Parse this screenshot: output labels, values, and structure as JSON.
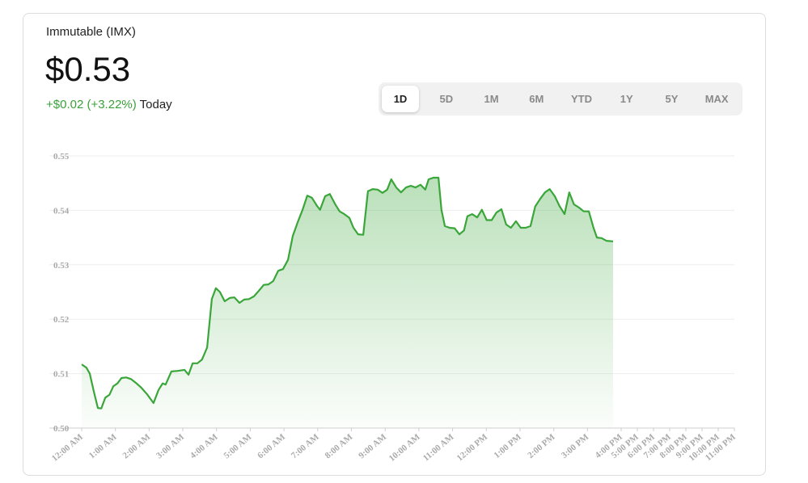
{
  "header": {
    "name": "Immutable (IMX)",
    "price": "$0.53",
    "change": "+$0.02 (+3.22%)",
    "period": "Today"
  },
  "range_buttons": [
    "1D",
    "5D",
    "1M",
    "6M",
    "YTD",
    "1Y",
    "5Y",
    "MAX"
  ],
  "selected_range": 0,
  "chart_data": {
    "type": "line",
    "color": "#3aa63a",
    "grid": true,
    "xlim": [
      0,
      23
    ],
    "ylim": [
      0.5,
      0.55
    ],
    "yticks": [
      {
        "value": 0.5,
        "label": "0.50"
      },
      0.51,
      0.52,
      0.53,
      0.54,
      0.55
    ],
    "xticks": [
      {
        "value": 0,
        "label": "12:00 AM"
      },
      {
        "value": 1,
        "label": "1:00 AM"
      },
      {
        "value": 2,
        "label": "2:00 AM"
      },
      {
        "value": 3,
        "label": "3:00 AM"
      },
      {
        "value": 4,
        "label": "4:00 AM"
      },
      {
        "value": 5,
        "label": "5:00 AM"
      },
      {
        "value": 6,
        "label": "6:00 AM"
      },
      {
        "value": 7,
        "label": "7:00 AM"
      },
      {
        "value": 8,
        "label": "8:00 AM"
      },
      {
        "value": 9,
        "label": "9:00 AM"
      },
      {
        "value": 10,
        "label": "10:00 AM"
      },
      {
        "value": 11,
        "label": "11:00 AM"
      },
      {
        "value": 12,
        "label": "12:00 PM"
      },
      {
        "value": 13,
        "label": "1:00 PM"
      },
      {
        "value": 14,
        "label": "2:00 PM"
      },
      {
        "value": 15,
        "label": "3:00 PM"
      },
      {
        "value": 16,
        "label": "4:00 PM"
      },
      {
        "value": 17,
        "label": "5:00 PM"
      },
      {
        "value": 18,
        "label": "6:00 PM"
      },
      {
        "value": 19,
        "label": "7:00 PM"
      },
      {
        "value": 20,
        "label": "8:00 PM"
      },
      {
        "value": 21,
        "label": "9:00 PM"
      },
      {
        "value": 22,
        "label": "10:00 PM"
      },
      {
        "value": 23,
        "label": "11:00 PM"
      }
    ],
    "x": [
      0,
      0.14,
      0.24,
      0.36,
      0.48,
      0.58,
      0.7,
      0.82,
      0.94,
      1.06,
      1.18,
      1.32,
      1.46,
      1.61,
      1.77,
      1.94,
      2.13,
      2.28,
      2.4,
      2.49,
      2.66,
      2.85,
      3.05,
      3.17,
      3.29,
      3.43,
      3.57,
      3.72,
      3.86,
      3.98,
      4.1,
      4.24,
      4.39,
      4.53,
      4.68,
      4.82,
      4.96,
      5.11,
      5.25,
      5.4,
      5.54,
      5.68,
      5.83,
      5.97,
      6.12,
      6.26,
      6.4,
      6.55,
      6.69,
      6.83,
      6.98,
      7.07,
      7.22,
      7.36,
      7.51,
      7.65,
      7.79,
      7.94,
      8.06,
      8.2,
      8.35,
      8.49,
      8.63,
      8.78,
      8.92,
      9.06,
      9.18,
      9.33,
      9.47,
      9.62,
      9.76,
      9.9,
      10.05,
      10.19,
      10.29,
      10.43,
      10.58,
      10.67,
      10.77,
      10.91,
      11.06,
      11.2,
      11.34,
      11.44,
      11.58,
      11.73,
      11.87,
      12.01,
      12.16,
      12.3,
      12.45,
      12.59,
      12.73,
      12.88,
      13.02,
      13.17,
      13.31,
      13.45,
      13.6,
      13.74,
      13.88,
      14.03,
      14.17,
      14.32,
      14.46,
      14.6,
      14.75,
      14.89,
      15.04,
      15.18,
      15.28,
      15.42,
      15.56,
      15.76
    ],
    "values": [
      0.5117,
      0.5111,
      0.51,
      0.5067,
      0.5037,
      0.5036,
      0.5056,
      0.5061,
      0.5077,
      0.5082,
      0.5092,
      0.5093,
      0.509,
      0.5083,
      0.5074,
      0.5062,
      0.5046,
      0.507,
      0.5082,
      0.508,
      0.5104,
      0.5105,
      0.5107,
      0.5098,
      0.5119,
      0.5119,
      0.5126,
      0.5148,
      0.5237,
      0.5257,
      0.525,
      0.5233,
      0.5239,
      0.524,
      0.523,
      0.5236,
      0.5237,
      0.5242,
      0.5252,
      0.5263,
      0.5264,
      0.527,
      0.5289,
      0.5292,
      0.5309,
      0.5353,
      0.5377,
      0.5401,
      0.5427,
      0.5423,
      0.5408,
      0.5401,
      0.5426,
      0.543,
      0.5412,
      0.5398,
      0.5393,
      0.5386,
      0.5368,
      0.5356,
      0.5355,
      0.5435,
      0.5439,
      0.5438,
      0.5432,
      0.5438,
      0.5457,
      0.5442,
      0.5433,
      0.5442,
      0.5445,
      0.5442,
      0.5447,
      0.5438,
      0.5457,
      0.546,
      0.546,
      0.5401,
      0.5371,
      0.5368,
      0.5367,
      0.5356,
      0.5363,
      0.5389,
      0.5393,
      0.5387,
      0.5401,
      0.5382,
      0.5382,
      0.5396,
      0.5402,
      0.5374,
      0.5368,
      0.538,
      0.5368,
      0.5368,
      0.5371,
      0.5407,
      0.5421,
      0.5433,
      0.5439,
      0.5426,
      0.5408,
      0.5393,
      0.5433,
      0.5411,
      0.5405,
      0.5398,
      0.5398,
      0.5368,
      0.535,
      0.5349,
      0.5344,
      0.5343
    ]
  }
}
